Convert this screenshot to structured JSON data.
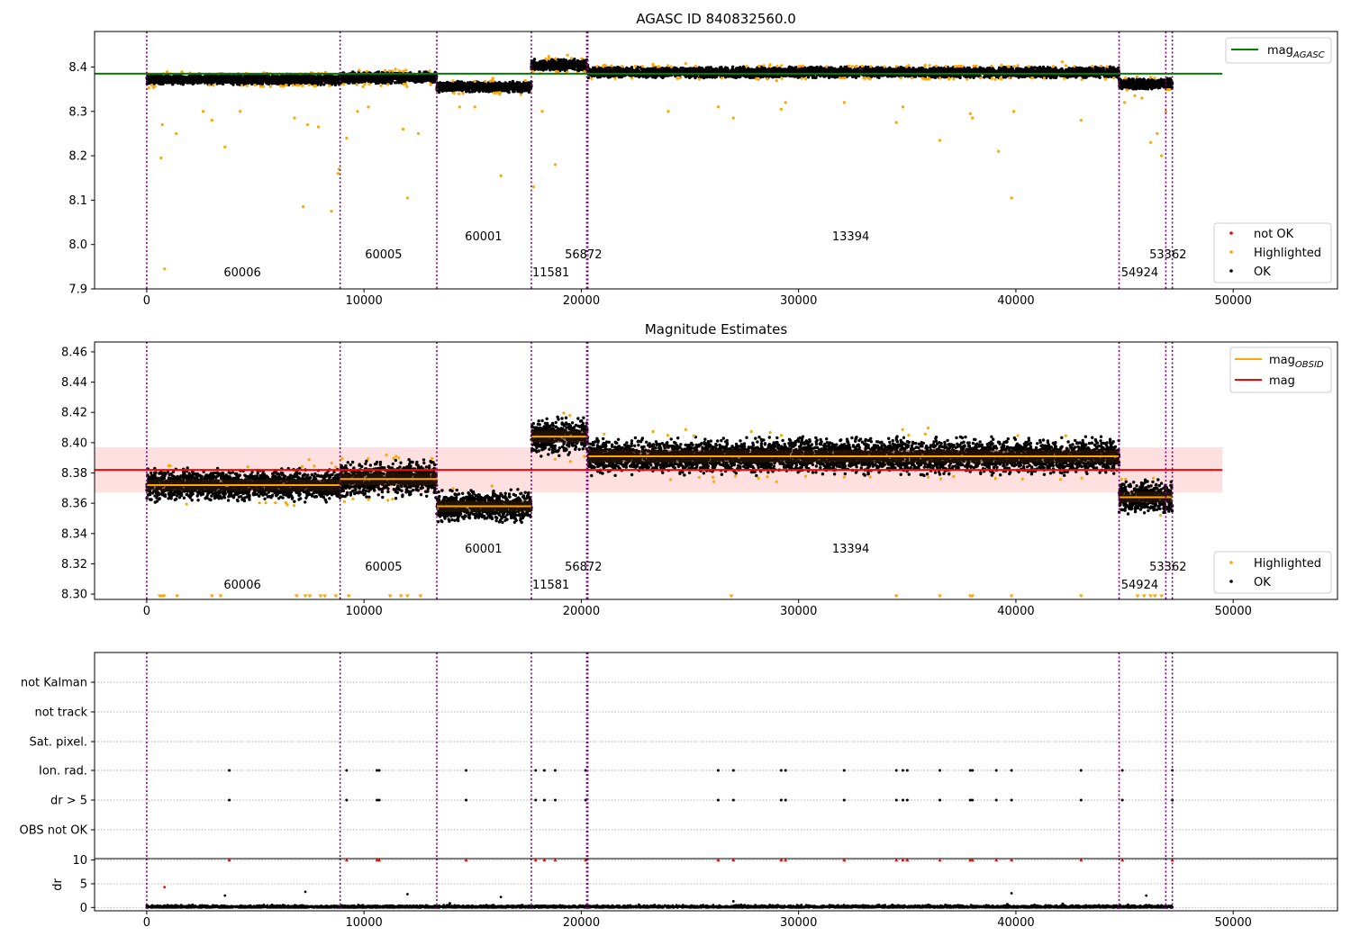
{
  "chart_data": [
    {
      "type": "scatter",
      "title": "AGASC ID 840832560.0",
      "xlim": [
        -2400,
        54800
      ],
      "ylim": [
        7.9,
        8.48
      ],
      "xticks": [
        0,
        10000,
        20000,
        30000,
        40000,
        50000
      ],
      "yticks": [
        7.9,
        8.0,
        8.1,
        8.2,
        8.3,
        8.4
      ],
      "ytick_labels": [
        "7.9",
        "8.0",
        "8.1",
        "8.2",
        "8.3",
        "8.4"
      ],
      "xtick_labels": [
        "0",
        "10000",
        "20000",
        "30000",
        "40000",
        "50000"
      ],
      "mag_agasc": 8.385,
      "mag_agasc_x_range": [
        -2400,
        49500
      ],
      "obsid_boundaries": [
        0,
        8900,
        13350,
        17700,
        20250,
        20300,
        44750,
        46900,
        47200
      ],
      "segments": [
        {
          "x": [
            0,
            8900
          ],
          "center": 8.372,
          "spread": 0.01
        },
        {
          "x": [
            8900,
            13350
          ],
          "center": 8.376,
          "spread": 0.011
        },
        {
          "x": [
            13350,
            17700
          ],
          "center": 8.355,
          "spread": 0.01
        },
        {
          "x": [
            17700,
            20300
          ],
          "center": 8.404,
          "spread": 0.011
        },
        {
          "x": [
            20300,
            44750
          ],
          "center": 8.388,
          "spread": 0.01
        },
        {
          "x": [
            44750,
            47200
          ],
          "center": 8.362,
          "spread": 0.01
        }
      ],
      "obsid_labels": [
        {
          "text": "60006",
          "x": 4400,
          "y": 7.928
        },
        {
          "text": "60005",
          "x": 10900,
          "y": 7.969
        },
        {
          "text": "60001",
          "x": 15500,
          "y": 8.01
        },
        {
          "text": "11581",
          "x": 18600,
          "y": 7.928
        },
        {
          "text": "56872",
          "x": 20100,
          "y": 7.969
        },
        {
          "text": "13394",
          "x": 32400,
          "y": 8.01
        },
        {
          "text": "54924",
          "x": 45700,
          "y": 7.928
        },
        {
          "text": "53362",
          "x": 47000,
          "y": 7.969
        }
      ],
      "highlighted_points": [
        [
          660,
          8.195
        ],
        [
          720,
          8.27
        ],
        [
          820,
          7.945
        ],
        [
          1350,
          8.25
        ],
        [
          2600,
          8.3
        ],
        [
          3000,
          8.28
        ],
        [
          3600,
          8.22
        ],
        [
          4300,
          8.3
        ],
        [
          6800,
          8.285
        ],
        [
          7200,
          8.085
        ],
        [
          7400,
          8.27
        ],
        [
          7900,
          8.265
        ],
        [
          8500,
          8.075
        ],
        [
          8800,
          8.16
        ],
        [
          8850,
          8.17
        ],
        [
          9200,
          8.24
        ],
        [
          9700,
          8.3
        ],
        [
          10200,
          8.31
        ],
        [
          11800,
          8.26
        ],
        [
          12000,
          8.105
        ],
        [
          12500,
          8.25
        ],
        [
          14400,
          8.31
        ],
        [
          15100,
          8.31
        ],
        [
          16300,
          8.155
        ],
        [
          17800,
          8.13
        ],
        [
          18200,
          8.3
        ],
        [
          18800,
          8.18
        ],
        [
          24000,
          8.3
        ],
        [
          26300,
          8.31
        ],
        [
          27000,
          8.285
        ],
        [
          29200,
          8.305
        ],
        [
          29400,
          8.32
        ],
        [
          32100,
          8.32
        ],
        [
          34500,
          8.275
        ],
        [
          34800,
          8.31
        ],
        [
          36500,
          8.235
        ],
        [
          37900,
          8.295
        ],
        [
          38000,
          8.285
        ],
        [
          39200,
          8.21
        ],
        [
          39800,
          8.105
        ],
        [
          39900,
          8.3
        ],
        [
          43000,
          8.28
        ],
        [
          45000,
          8.32
        ],
        [
          45800,
          8.33
        ],
        [
          46200,
          8.23
        ],
        [
          46500,
          8.25
        ],
        [
          46700,
          8.2
        ],
        [
          46900,
          8.3
        ]
      ],
      "legend": [
        "mag$_{AGASC}$",
        "not OK",
        "Highlighted",
        "OK"
      ],
      "legend_items": [
        "mag",
        "AGASC",
        "not OK",
        "Highlighted",
        "OK"
      ]
    },
    {
      "type": "scatter",
      "title": "Magnitude Estimates",
      "xlim": [
        -2400,
        54800
      ],
      "ylim": [
        8.2965,
        8.4665
      ],
      "xticks": [
        0,
        10000,
        20000,
        30000,
        40000,
        50000
      ],
      "yticks": [
        8.3,
        8.32,
        8.34,
        8.36,
        8.38,
        8.4,
        8.42,
        8.44,
        8.46
      ],
      "ytick_labels": [
        "8.30",
        "8.32",
        "8.34",
        "8.36",
        "8.38",
        "8.40",
        "8.42",
        "8.44",
        "8.46"
      ],
      "xtick_labels": [
        "0",
        "10000",
        "20000",
        "30000",
        "40000",
        "50000"
      ],
      "mag": 8.382,
      "mag_band": [
        8.367,
        8.397
      ],
      "mag_x_range": [
        -2400,
        49500
      ],
      "obsid_boundaries": [
        0,
        8900,
        13350,
        17700,
        20250,
        20300,
        44750,
        46900,
        47200
      ],
      "mag_obsid": [
        {
          "x": [
            0,
            8900
          ],
          "value": 8.372,
          "spread": 0.008
        },
        {
          "x": [
            8900,
            13350
          ],
          "value": 8.376,
          "spread": 0.009
        },
        {
          "x": [
            13350,
            17700
          ],
          "value": 8.358,
          "spread": 0.008
        },
        {
          "x": [
            17700,
            20300
          ],
          "value": 8.404,
          "spread": 0.009
        },
        {
          "x": [
            20300,
            44750
          ],
          "value": 8.391,
          "spread": 0.009
        },
        {
          "x": [
            44750,
            47200
          ],
          "value": 8.364,
          "spread": 0.008
        }
      ],
      "obsid_labels": [
        {
          "text": "60006",
          "x": 4400,
          "y": 8.3035
        },
        {
          "text": "60005",
          "x": 10900,
          "y": 8.3155
        },
        {
          "text": "60001",
          "x": 15500,
          "y": 8.3275
        },
        {
          "text": "11581",
          "x": 18600,
          "y": 8.3035
        },
        {
          "text": "56872",
          "x": 20100,
          "y": 8.3155
        },
        {
          "text": "13394",
          "x": 32400,
          "y": 8.3275
        },
        {
          "text": "54924",
          "x": 45700,
          "y": 8.3035
        },
        {
          "text": "53362",
          "x": 47000,
          "y": 8.3155
        }
      ],
      "clipped_low_x": [
        600,
        700,
        800,
        1400,
        3000,
        3400,
        6900,
        7300,
        7500,
        8000,
        8200,
        8700,
        9300,
        11200,
        11700,
        12000,
        12600,
        26900,
        34500,
        36500,
        37900,
        38000,
        39800,
        43000,
        45600,
        45900,
        46200,
        46400,
        46700
      ],
      "legend": [
        "mag$_{OBSID}$",
        "mag",
        "Highlighted",
        "OK"
      ],
      "legend_items": [
        "mag",
        "OBSID",
        "mag",
        "Highlighted",
        "OK"
      ]
    },
    {
      "type": "scatter",
      "title": "",
      "xlim": [
        -2400,
        54800
      ],
      "xticks": [
        0,
        10000,
        20000,
        30000,
        40000,
        50000
      ],
      "xtick_labels": [
        "0",
        "10000",
        "20000",
        "30000",
        "40000",
        "50000"
      ],
      "flag_categories": [
        "not Kalman",
        "not track",
        "Sat. pixel.",
        "Ion. rad.",
        "dr > 5",
        "OBS not OK"
      ],
      "flag_events_x": [
        3800,
        9200,
        10600,
        10700,
        14700,
        17900,
        18300,
        18800,
        20200,
        26300,
        27000,
        29200,
        29400,
        32100,
        34500,
        34800,
        35000,
        36500,
        37900,
        38000,
        39100,
        39800,
        43000,
        44900,
        47200
      ],
      "dr_ylim": [
        -0.7,
        10.3
      ],
      "dr_yticks": [
        0,
        5,
        10
      ],
      "dr_ytick_labels": [
        "0",
        "5",
        "10"
      ],
      "dr_ylabel": "dr",
      "obsid_boundaries": [
        0,
        8900,
        13350,
        17700,
        20250,
        20300,
        44750,
        46900,
        47200
      ]
    }
  ]
}
